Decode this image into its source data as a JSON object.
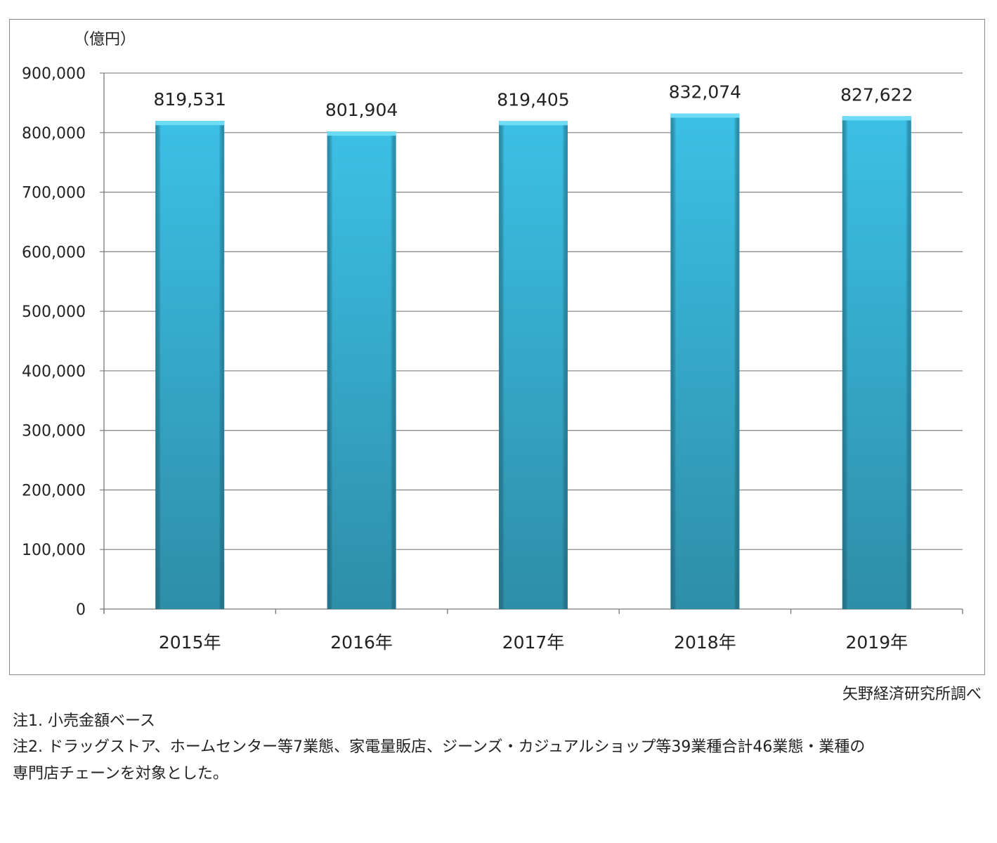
{
  "chart_data": {
    "type": "bar",
    "title": "",
    "unit_label": "（億円）",
    "xlabel": "",
    "ylabel": "",
    "categories": [
      "2015年",
      "2016年",
      "2017年",
      "2018年",
      "2019年"
    ],
    "values": [
      819531,
      801904,
      819405,
      832074,
      827622
    ],
    "data_labels": [
      "819,531",
      "801,904",
      "819,405",
      "832,074",
      "827,622"
    ],
    "ylim": [
      0,
      900000
    ],
    "yticks": [
      0,
      100000,
      200000,
      300000,
      400000,
      500000,
      600000,
      700000,
      800000,
      900000
    ],
    "ytick_labels": [
      "0",
      "100,000",
      "200,000",
      "300,000",
      "400,000",
      "500,000",
      "600,000",
      "700,000",
      "800,000",
      "900,000"
    ],
    "grid": true,
    "bar_color": "#38b8dc",
    "legend": "none"
  },
  "source": "矢野経済研究所調べ",
  "notes": [
    "注1.  小売金額ベース",
    "注2.  ドラッグストア、ホームセンター等7業態、家電量販店、ジーンズ・カジュアルショップ等39業種合計46業態・業種の",
    "専門店チェーンを対象とした。"
  ]
}
